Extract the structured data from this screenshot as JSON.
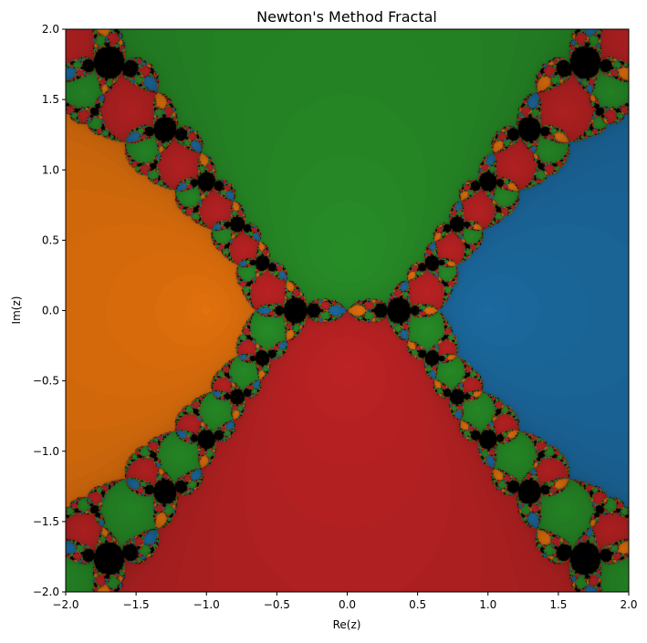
{
  "chart_data": {
    "type": "heatmap",
    "title": "Newton's Method Fractal",
    "xlabel": "Re(z)",
    "ylabel": "Im(z)",
    "xlim": [
      -2.0,
      2.0
    ],
    "ylim": [
      -2.0,
      2.0
    ],
    "x_ticks": [
      -2.0,
      -1.5,
      -1.0,
      -0.5,
      0.0,
      0.5,
      1.0,
      1.5,
      2.0
    ],
    "x_tick_labels": [
      "−2.0",
      "−1.5",
      "−1.0",
      "−0.5",
      "0.0",
      "0.5",
      "1.0",
      "1.5",
      "2.0"
    ],
    "y_ticks": [
      -2.0,
      -1.5,
      -1.0,
      -0.5,
      0.0,
      0.5,
      1.0,
      1.5,
      2.0
    ],
    "y_tick_labels": [
      "−2.0",
      "−1.5",
      "−1.0",
      "−0.5",
      "0.0",
      "0.5",
      "1.0",
      "1.5",
      "2.0"
    ],
    "grid": false,
    "iteration": "newton",
    "polynomial_roots": [
      {
        "re": 1.0,
        "im": 0.0,
        "color": "#1f77b4"
      },
      {
        "re": -1.0,
        "im": 0.0,
        "color": "#ff7f0e"
      },
      {
        "re": 0.0,
        "im": 0.4,
        "color": "#2ca02c"
      },
      {
        "re": 0.0,
        "im": -0.4,
        "color": "#d62728"
      }
    ],
    "non_converged_color": "#000000",
    "max_iterations": 40,
    "shading": "brightness decreases with iteration count"
  }
}
